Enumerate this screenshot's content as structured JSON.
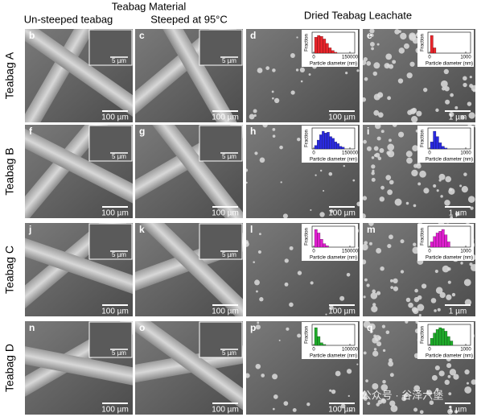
{
  "header": {
    "title": "Teabag Material",
    "columns": [
      "Un-steeped teabag",
      "Steeped at 95°C"
    ],
    "leachate": "Dried Teabag Leachate"
  },
  "rows": [
    {
      "label": "Teabag A",
      "panels": [
        {
          "letter": "b",
          "scale": "100 µm",
          "inset_scale": "5 µm"
        },
        {
          "letter": "c",
          "scale": "100 µm",
          "inset_scale": "5 µm"
        },
        {
          "letter": "d",
          "scale": "100 µm",
          "hist": {
            "color": "#e8252b",
            "y_label": "Fraction",
            "x_label": "Particle diameter (nm)",
            "xticks": [
              0,
              150000
            ],
            "bars": [
              0.9,
              1,
              0.95,
              0.8,
              0.55,
              0.3,
              0.15,
              0.05
            ]
          }
        },
        {
          "letter": "e",
          "scale": "1 µm",
          "hist": {
            "color": "#e8252b",
            "y_label": "Fraction",
            "x_label": "Particle diameter (nm)",
            "xticks": [
              0,
              1000
            ],
            "bars": [
              1,
              0.3
            ]
          }
        }
      ]
    },
    {
      "label": "Teabag B",
      "panels": [
        {
          "letter": "f",
          "scale": "100 µm",
          "inset_scale": "5 µm"
        },
        {
          "letter": "g",
          "scale": "100 µm",
          "inset_scale": "5 µm"
        },
        {
          "letter": "h",
          "scale": "100 µm",
          "hist": {
            "color": "#2a2ae0",
            "y_label": "Fraction",
            "x_label": "Particle diameter (nm)",
            "xticks": [
              0,
              150000
            ],
            "bars": [
              0.2,
              0.5,
              0.8,
              1,
              0.9,
              0.95,
              0.7,
              0.6,
              0.4,
              0.3,
              0.15,
              0.1
            ]
          }
        },
        {
          "letter": "i",
          "scale": "1 µm",
          "hist": {
            "color": "#2a2ae0",
            "y_label": "Fraction",
            "x_label": "Particle diameter (nm)",
            "xticks": [
              0,
              1000
            ],
            "bars": [
              0.4,
              1,
              0.7,
              0.35,
              0.15,
              0.05
            ]
          }
        }
      ]
    },
    {
      "label": "Teabag C",
      "panels": [
        {
          "letter": "j",
          "scale": "100 µm",
          "inset_scale": "5 µm"
        },
        {
          "letter": "k",
          "scale": "100 µm",
          "inset_scale": "5 µm"
        },
        {
          "letter": "l",
          "scale": "100 µm",
          "hist": {
            "color": "#e020d0",
            "y_label": "Fraction",
            "x_label": "Particle diameter (nm)",
            "xticks": [
              0,
              150000
            ],
            "bars": [
              1,
              0.8,
              0.45,
              0.2,
              0.08
            ]
          }
        },
        {
          "letter": "m",
          "scale": "1 µm",
          "hist": {
            "color": "#e020d0",
            "y_label": "Fraction",
            "x_label": "Particle diameter (nm)",
            "xticks": [
              0,
              1000
            ],
            "bars": [
              0.3,
              0.6,
              0.8,
              0.9,
              1,
              0.7,
              0.3
            ]
          }
        }
      ]
    },
    {
      "label": "Teabag D",
      "panels": [
        {
          "letter": "n",
          "scale": "100 µm",
          "inset_scale": "5 µm"
        },
        {
          "letter": "o",
          "scale": "100 µm",
          "inset_scale": "5 µm"
        },
        {
          "letter": "p",
          "scale": "100 µm",
          "hist": {
            "color": "#1faa2a",
            "y_label": "Fraction",
            "x_label": "Particle diameter (nm)",
            "xticks": [
              0,
              100000
            ],
            "bars": [
              1,
              0.5,
              0.15,
              0.05
            ]
          }
        },
        {
          "letter": "q",
          "scale": "1 µm",
          "hist": {
            "color": "#1faa2a",
            "y_label": "Fraction",
            "x_label": "Particle diameter (nm)",
            "xticks": [
              0,
              1000
            ],
            "bars": [
              0.4,
              0.7,
              0.9,
              1,
              0.95,
              0.8,
              0.5,
              0.25
            ]
          }
        }
      ]
    }
  ],
  "watermark": "公众号 · 谷泽六堡"
}
